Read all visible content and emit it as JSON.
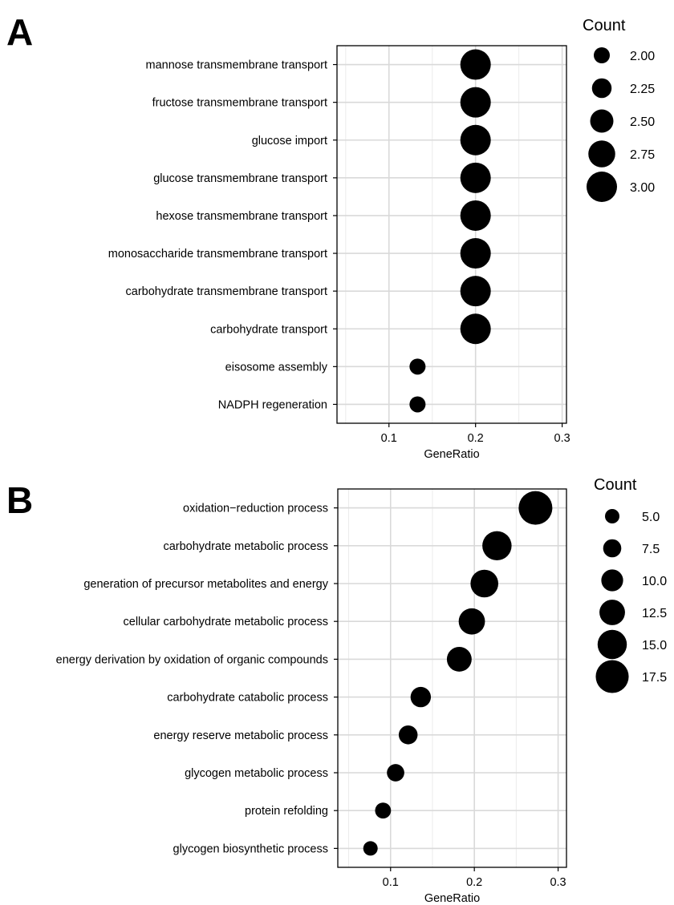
{
  "chart_data": [
    {
      "panel": "A",
      "type": "scatter",
      "xlabel": "GeneRatio",
      "xlim": [
        0.04,
        0.305
      ],
      "xticks": [
        0.1,
        0.2,
        0.3
      ],
      "xtick_labels": [
        "0.1",
        "0.2",
        "0.3"
      ],
      "grid": true,
      "legend": {
        "title": "Count",
        "placement": "right",
        "entries": [
          {
            "label": "2.00",
            "value": 2.0
          },
          {
            "label": "2.25",
            "value": 2.25
          },
          {
            "label": "2.50",
            "value": 2.5
          },
          {
            "label": "2.75",
            "value": 2.75
          },
          {
            "label": "3.00",
            "value": 3.0
          }
        ]
      },
      "points": [
        {
          "term": "mannose transmembrane transport",
          "gene_ratio": 0.2,
          "count": 3
        },
        {
          "term": "fructose transmembrane transport",
          "gene_ratio": 0.2,
          "count": 3
        },
        {
          "term": "glucose import",
          "gene_ratio": 0.2,
          "count": 3
        },
        {
          "term": "glucose transmembrane transport",
          "gene_ratio": 0.2,
          "count": 3
        },
        {
          "term": "hexose transmembrane transport",
          "gene_ratio": 0.2,
          "count": 3
        },
        {
          "term": "monosaccharide transmembrane transport",
          "gene_ratio": 0.2,
          "count": 3
        },
        {
          "term": "carbohydrate transmembrane transport",
          "gene_ratio": 0.2,
          "count": 3
        },
        {
          "term": "carbohydrate transport",
          "gene_ratio": 0.2,
          "count": 3
        },
        {
          "term": "eisosome assembly",
          "gene_ratio": 0.133,
          "count": 2
        },
        {
          "term": "NADPH regeneration",
          "gene_ratio": 0.133,
          "count": 2
        }
      ]
    },
    {
      "panel": "B",
      "type": "scatter",
      "xlabel": "GeneRatio",
      "xlim": [
        0.037,
        0.31
      ],
      "xticks": [
        0.1,
        0.2,
        0.3
      ],
      "xtick_labels": [
        "0.1",
        "0.2",
        "0.3"
      ],
      "grid": true,
      "legend": {
        "title": "Count",
        "placement": "right",
        "entries": [
          {
            "label": "5.0",
            "value": 5.0
          },
          {
            "label": "7.5",
            "value": 7.5
          },
          {
            "label": "10.0",
            "value": 10.0
          },
          {
            "label": "12.5",
            "value": 12.5
          },
          {
            "label": "15.0",
            "value": 15.0
          },
          {
            "label": "17.5",
            "value": 17.5
          }
        ]
      },
      "points": [
        {
          "term": "oxidation−reduction process",
          "gene_ratio": 0.273,
          "count": 18
        },
        {
          "term": "carbohydrate metabolic process",
          "gene_ratio": 0.227,
          "count": 15
        },
        {
          "term": "generation of precursor metabolites and energy",
          "gene_ratio": 0.212,
          "count": 14
        },
        {
          "term": "cellular carbohydrate metabolic process",
          "gene_ratio": 0.197,
          "count": 13
        },
        {
          "term": "energy derivation by oxidation of organic compounds",
          "gene_ratio": 0.182,
          "count": 12
        },
        {
          "term": "carbohydrate catabolic process",
          "gene_ratio": 0.136,
          "count": 9
        },
        {
          "term": "energy reserve metabolic process",
          "gene_ratio": 0.121,
          "count": 8
        },
        {
          "term": "glycogen metabolic process",
          "gene_ratio": 0.106,
          "count": 7
        },
        {
          "term": "protein refolding",
          "gene_ratio": 0.091,
          "count": 6
        },
        {
          "term": "glycogen biosynthetic process",
          "gene_ratio": 0.076,
          "count": 5
        }
      ]
    }
  ]
}
